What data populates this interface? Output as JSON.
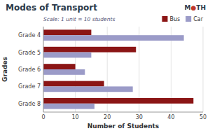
{
  "chart_data": {
    "type": "bar",
    "orientation": "horizontal",
    "title": "Modes of Transport",
    "x_label": "Number of Students",
    "y_label": "Grades",
    "categories": [
      "Grade 4",
      "Grade 5",
      "Grade 6",
      "Grade 7",
      "Grade 8"
    ],
    "series": [
      {
        "name": "Bus",
        "color": "#8B1515",
        "values": [
          15,
          29,
          10,
          19,
          47
        ]
      },
      {
        "name": "Car",
        "color": "#9B9BC8",
        "values": [
          44,
          15,
          13,
          28,
          16
        ]
      }
    ],
    "xlim": [
      0,
      50
    ],
    "xticks": [
      0,
      10,
      20,
      30,
      40,
      50
    ],
    "grid": true,
    "legend": "upper right",
    "annotations": [
      "Scale: 1 unit = 10 students",
      "M",
      "●",
      "TH"
    ]
  }
}
